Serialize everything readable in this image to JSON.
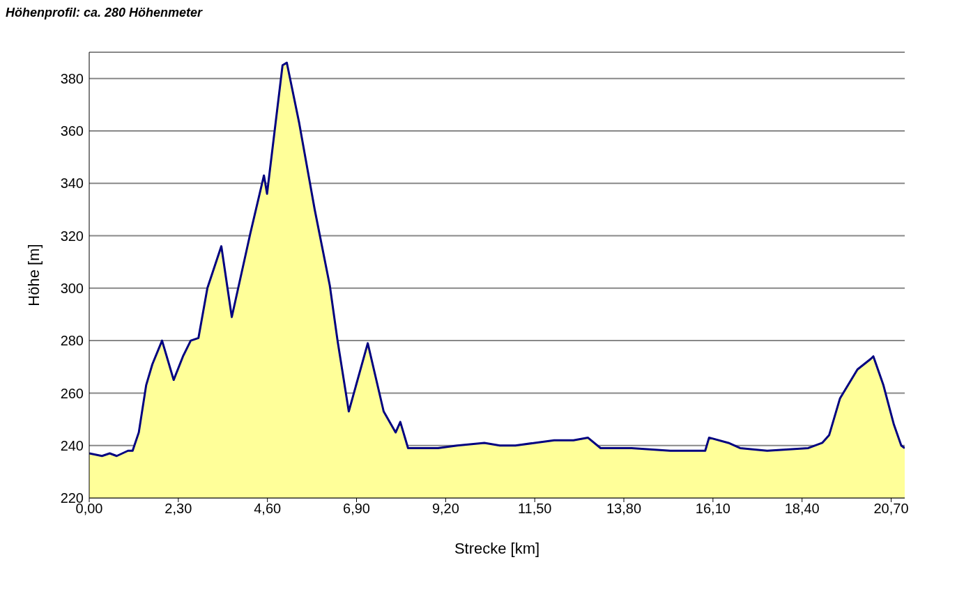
{
  "chart_data": {
    "type": "area",
    "title": "Höhenprofil: ca. 280 Höhenmeter",
    "xlabel": "Strecke [km]",
    "ylabel": "Höhe [m]",
    "x": [
      0,
      0.33,
      0.53,
      0.71,
      1.0,
      1.12,
      1.28,
      1.47,
      1.63,
      1.88,
      2.18,
      2.42,
      2.62,
      2.82,
      3.05,
      3.41,
      3.68,
      4.16,
      4.51,
      4.59,
      4.99,
      5.1,
      5.42,
      5.82,
      6.21,
      6.41,
      6.7,
      7.19,
      7.6,
      7.91,
      8.03,
      8.23,
      9.0,
      9.5,
      10.2,
      10.6,
      11.0,
      11.5,
      12.0,
      12.5,
      12.87,
      13.2,
      14.0,
      15.0,
      15.9,
      16.0,
      16.5,
      16.8,
      17.5,
      18.56,
      18.92,
      19.1,
      19.38,
      19.83,
      20.17,
      20.24,
      20.5,
      20.77,
      20.96,
      21.05
    ],
    "series": [
      {
        "color": "#ffff99",
        "values": [
          237,
          236,
          237,
          236,
          238,
          238,
          245,
          263,
          271,
          280,
          265,
          274,
          280,
          281,
          300,
          316,
          289,
          321,
          343,
          336,
          385,
          386,
          363,
          330,
          301,
          280,
          253,
          279,
          253,
          245,
          249,
          239,
          239,
          240,
          241,
          240,
          240,
          241,
          242,
          242,
          243,
          239,
          239,
          238,
          238,
          243,
          241,
          239,
          238,
          239,
          241,
          244,
          258,
          269,
          273,
          274,
          263,
          248,
          240,
          239
        ]
      },
      {
        "type": "line",
        "color": "#000080",
        "values": [
          237,
          236,
          237,
          236,
          238,
          238,
          245,
          263,
          271,
          280,
          265,
          274,
          280,
          281,
          300,
          316,
          289,
          321,
          343,
          336,
          385,
          386,
          363,
          330,
          301,
          280,
          253,
          279,
          253,
          245,
          249,
          239,
          239,
          240,
          241,
          240,
          240,
          241,
          242,
          242,
          243,
          239,
          239,
          238,
          238,
          243,
          241,
          239,
          238,
          239,
          241,
          244,
          258,
          269,
          273,
          274,
          263,
          248,
          240,
          239
        ]
      }
    ],
    "xlim": [
      0,
      21.05
    ],
    "xticks": [
      {
        "value": 0,
        "label": "0,00"
      },
      {
        "value": 2.3,
        "label": "2,30"
      },
      {
        "value": 4.6,
        "label": "4,60"
      },
      {
        "value": 6.9,
        "label": "6,90"
      },
      {
        "value": 9.2,
        "label": "9,20"
      },
      {
        "value": 11.5,
        "label": "11,50"
      },
      {
        "value": 13.8,
        "label": "13,80"
      },
      {
        "value": 16.1,
        "label": "16,10"
      },
      {
        "value": 18.4,
        "label": "18,40"
      },
      {
        "value": 20.7,
        "label": "20,70"
      }
    ],
    "ylim": [
      220,
      390
    ],
    "yticks": [
      220,
      240,
      260,
      280,
      300,
      320,
      340,
      360,
      380
    ],
    "grid": "y",
    "legend": false,
    "line_style": "solid",
    "marker": "none"
  }
}
